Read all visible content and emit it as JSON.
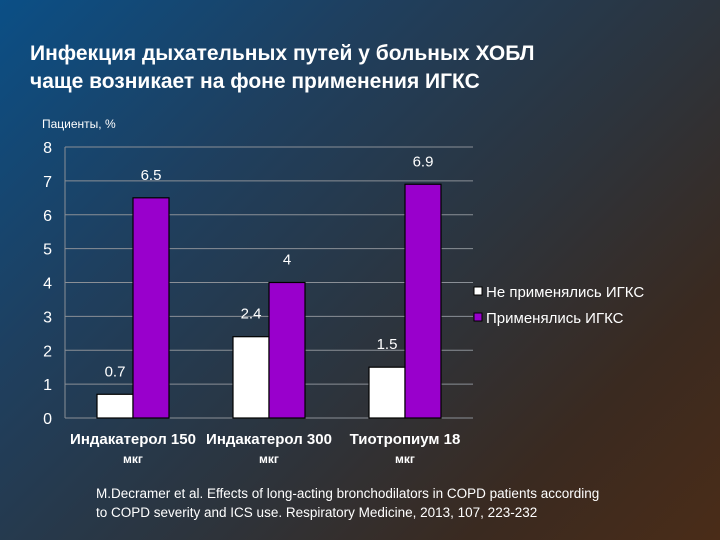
{
  "slide": {
    "title_line1": "Инфекция дыхательных путей у больных ХОБЛ",
    "title_line2": "чаще возникает на фоне применения ИГКС",
    "citation_line1": "M.Decramer et al. Effects of long-acting bronchodilators in COPD patients according",
    "citation_line2": "to COPD severity and ICS use. Respiratory Medicine, 2013, 107, 223-232"
  },
  "chart_data": {
    "type": "bar",
    "ylabel": "Пациенты, %",
    "ylim": [
      0,
      8
    ],
    "yticks": [
      "0",
      "1",
      "2",
      "3",
      "4",
      "5",
      "6",
      "7",
      "8"
    ],
    "grid": true,
    "legend_position": "right",
    "categories": [
      [
        "Индакатерол 150",
        "мкг"
      ],
      [
        "Индакатерол 300",
        "мкг"
      ],
      [
        "Тиотропиум 18",
        "мкг"
      ]
    ],
    "series": [
      {
        "name": "Не применялись ИГКС",
        "color": "#ffffff",
        "values": [
          0.7,
          2.4,
          1.5
        ],
        "labels": [
          "0.7",
          "2.4",
          "1.5"
        ]
      },
      {
        "name": "Применялись ИГКС",
        "color": "#9900cc",
        "values": [
          6.5,
          4,
          6.9
        ],
        "labels": [
          "6.5",
          "4",
          "6.9"
        ]
      }
    ]
  }
}
